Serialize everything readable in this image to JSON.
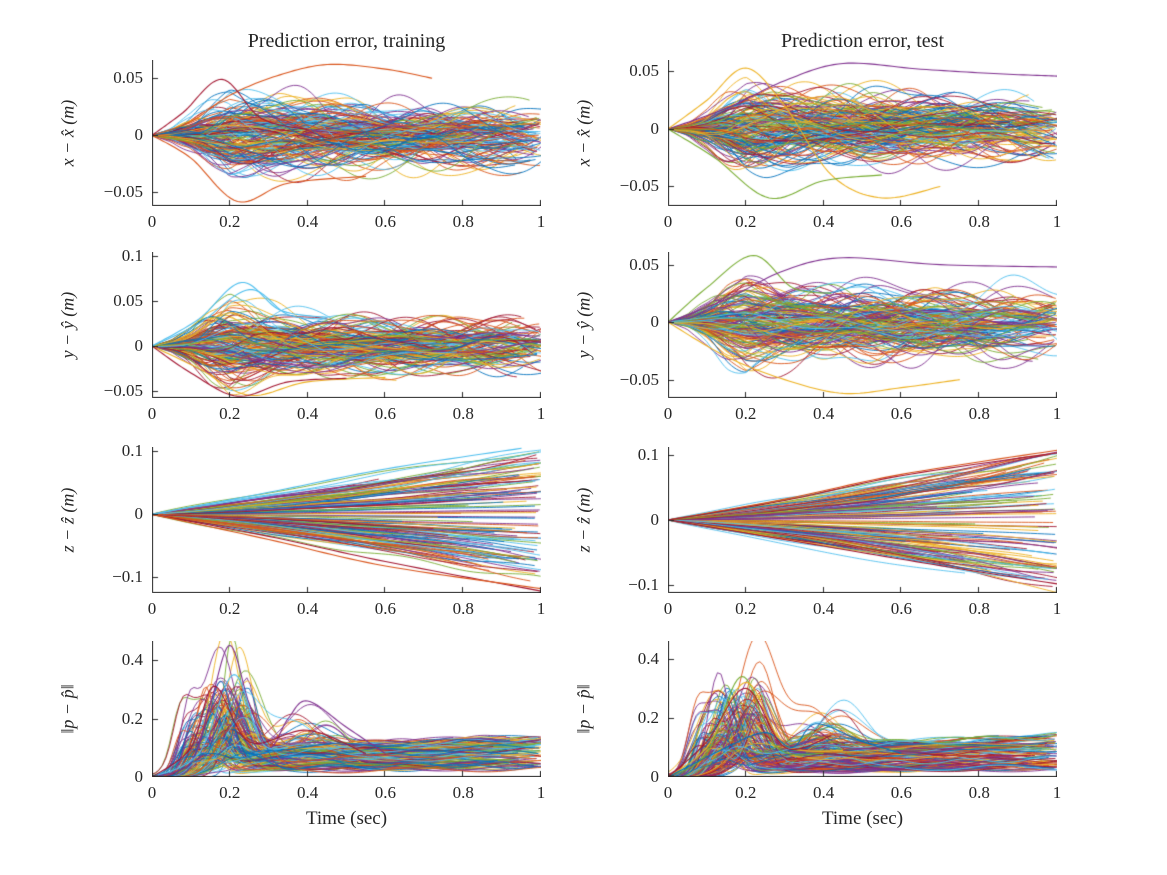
{
  "figure": {
    "background": "#ffffff",
    "axis_color": "#262626",
    "text_color": "#262626",
    "layout_note": "4x2 grid of MATLAB-style subplots, left column = training, right column = test"
  },
  "palette": [
    "#0072BD",
    "#D95319",
    "#EDB120",
    "#7E2F8E",
    "#77AC30",
    "#4DBEEE",
    "#A2142F"
  ],
  "chart_data": [
    {
      "type": "line-ensemble",
      "kind": "sym",
      "seed": 7,
      "n_lines": 170,
      "title": "Prediction error, training",
      "xlabel": "",
      "ylabel": "x − x̂ (m)",
      "xlim": [
        0,
        1
      ],
      "ylim": [
        -0.062,
        0.066
      ],
      "xticks": [
        0,
        0.2,
        0.4,
        0.6,
        0.8,
        1
      ],
      "yticks": [
        0.05,
        0,
        -0.05
      ],
      "envelope_t": [
        0,
        0.05,
        0.1,
        0.15,
        0.2,
        0.25,
        0.3,
        0.35,
        0.4,
        0.5,
        0.6,
        0.7,
        0.8,
        0.9,
        1
      ],
      "envelope": [
        0,
        0.006,
        0.018,
        0.034,
        0.046,
        0.044,
        0.04,
        0.038,
        0.037,
        0.036,
        0.035,
        0.035,
        0.034,
        0.034,
        0.034
      ],
      "highlights": [
        {
          "color": "#D95319",
          "t": [
            0,
            0.1,
            0.2,
            0.32,
            0.45,
            0.6,
            0.72
          ],
          "v": [
            0,
            0.012,
            0.035,
            0.052,
            0.062,
            0.058,
            0.05
          ]
        },
        {
          "color": "#A2142F",
          "t": [
            0,
            0.08,
            0.18,
            0.28,
            0.4
          ],
          "v": [
            0,
            0.02,
            0.049,
            0.015,
            0.005
          ]
        },
        {
          "color": "#D95319",
          "t": [
            0,
            0.1,
            0.22,
            0.35,
            0.55
          ],
          "v": [
            0,
            -0.02,
            -0.058,
            -0.042,
            -0.036
          ]
        }
      ],
      "description": "~170 x-position prediction-error trajectories vs time; bulge of about +/-0.05 m near t=0.2 s settling to +/-0.035 m band"
    },
    {
      "type": "line-ensemble",
      "kind": "sym",
      "seed": 12,
      "n_lines": 170,
      "title": "Prediction error, test",
      "xlabel": "",
      "ylabel": "x − x̂ (m)",
      "xlim": [
        0,
        1
      ],
      "ylim": [
        -0.067,
        0.06
      ],
      "xticks": [
        0,
        0.2,
        0.4,
        0.6,
        0.8,
        1
      ],
      "yticks": [
        0.05,
        0,
        -0.05
      ],
      "envelope_t": [
        0,
        0.05,
        0.1,
        0.15,
        0.2,
        0.25,
        0.3,
        0.35,
        0.4,
        0.5,
        0.6,
        0.7,
        0.8,
        0.9,
        1
      ],
      "envelope": [
        0,
        0.005,
        0.016,
        0.032,
        0.043,
        0.042,
        0.039,
        0.037,
        0.036,
        0.035,
        0.035,
        0.034,
        0.034,
        0.034,
        0.034
      ],
      "highlights": [
        {
          "color": "#7E2F8E",
          "t": [
            0,
            0.15,
            0.3,
            0.45,
            0.65,
            0.85,
            1
          ],
          "v": [
            0,
            0.018,
            0.042,
            0.057,
            0.052,
            0.048,
            0.046
          ]
        },
        {
          "color": "#EDB120",
          "t": [
            0,
            0.1,
            0.2,
            0.3,
            0.42,
            0.55,
            0.7
          ],
          "v": [
            0,
            0.025,
            0.053,
            0.02,
            -0.04,
            -0.06,
            -0.05
          ]
        },
        {
          "color": "#77AC30",
          "t": [
            0,
            0.12,
            0.26,
            0.4,
            0.55
          ],
          "v": [
            0,
            -0.025,
            -0.06,
            -0.045,
            -0.04
          ]
        }
      ],
      "description": "~170 x-position prediction-error trajectories on test data; similar +/-0.05 m bulge near t=0.2 s"
    },
    {
      "type": "line-ensemble",
      "kind": "sym",
      "seed": 3,
      "n_lines": 170,
      "title": "",
      "xlabel": "",
      "ylabel": "y − ŷ (m)",
      "xlim": [
        0,
        1
      ],
      "ylim": [
        -0.058,
        0.105
      ],
      "xticks": [
        0,
        0.2,
        0.4,
        0.6,
        0.8,
        1
      ],
      "yticks": [
        0.1,
        0.05,
        0,
        -0.05
      ],
      "envelope_t": [
        0,
        0.05,
        0.1,
        0.15,
        0.2,
        0.25,
        0.3,
        0.35,
        0.4,
        0.5,
        0.6,
        0.7,
        0.8,
        0.9,
        1
      ],
      "envelope": [
        0,
        0.007,
        0.02,
        0.038,
        0.05,
        0.047,
        0.042,
        0.039,
        0.037,
        0.036,
        0.035,
        0.035,
        0.035,
        0.035,
        0.035
      ],
      "highlights": [
        {
          "color": "#4DBEEE",
          "t": [
            0,
            0.12,
            0.23,
            0.33,
            0.45
          ],
          "v": [
            0,
            0.03,
            0.071,
            0.04,
            0.032
          ]
        },
        {
          "color": "#4DBEEE",
          "t": [
            0,
            0.12,
            0.25,
            0.35,
            0.45
          ],
          "v": [
            0,
            0.025,
            0.063,
            0.035,
            0.03
          ]
        },
        {
          "color": "#EDB120",
          "t": [
            0,
            0.12,
            0.25,
            0.4,
            0.6
          ],
          "v": [
            0,
            -0.025,
            -0.055,
            -0.04,
            -0.035
          ]
        },
        {
          "color": "#A2142F",
          "t": [
            0,
            0.1,
            0.22,
            0.35,
            0.5
          ],
          "v": [
            0,
            -0.03,
            -0.056,
            -0.04,
            -0.036
          ]
        }
      ],
      "description": "~170 y-position prediction-error trajectories (training); peak ~0.07 m near t=0.22 s, settling band +/-0.04 m"
    },
    {
      "type": "line-ensemble",
      "kind": "sym",
      "seed": 9,
      "n_lines": 170,
      "title": "",
      "xlabel": "",
      "ylabel": "y − ŷ (m)",
      "xlim": [
        0,
        1
      ],
      "ylim": [
        -0.066,
        0.061
      ],
      "xticks": [
        0,
        0.2,
        0.4,
        0.6,
        0.8,
        1
      ],
      "yticks": [
        0.05,
        0,
        -0.05
      ],
      "envelope_t": [
        0,
        0.05,
        0.1,
        0.15,
        0.2,
        0.25,
        0.3,
        0.35,
        0.4,
        0.5,
        0.6,
        0.7,
        0.8,
        0.9,
        1
      ],
      "envelope": [
        0,
        0.006,
        0.018,
        0.035,
        0.046,
        0.044,
        0.04,
        0.038,
        0.037,
        0.036,
        0.035,
        0.035,
        0.035,
        0.035,
        0.035
      ],
      "highlights": [
        {
          "color": "#77AC30",
          "t": [
            0,
            0.1,
            0.22,
            0.32,
            0.42
          ],
          "v": [
            0,
            0.03,
            0.058,
            0.03,
            0.025
          ]
        },
        {
          "color": "#7E2F8E",
          "t": [
            0,
            0.15,
            0.3,
            0.45,
            0.7,
            1
          ],
          "v": [
            0,
            0.02,
            0.045,
            0.056,
            0.05,
            0.048
          ]
        },
        {
          "color": "#EDB120",
          "t": [
            0,
            0.15,
            0.3,
            0.45,
            0.6,
            0.75
          ],
          "v": [
            0,
            -0.03,
            -0.05,
            -0.062,
            -0.057,
            -0.05
          ]
        }
      ],
      "description": "~170 y-position prediction-error trajectories (test); peak ~0.058 m near t=0.2 s"
    },
    {
      "type": "line-ensemble",
      "kind": "fan",
      "seed": 5,
      "n_lines": 150,
      "fan_max": 0.105,
      "title": "",
      "xlabel": "",
      "ylabel": "z − ẑ (m)",
      "xlim": [
        0,
        1
      ],
      "ylim": [
        -0.125,
        0.107
      ],
      "xticks": [
        0,
        0.2,
        0.4,
        0.6,
        0.8,
        1
      ],
      "yticks": [
        0.1,
        0,
        -0.1
      ],
      "highlights": [
        {
          "color": "#4DBEEE",
          "t": [
            0,
            0.3,
            0.6,
            0.95
          ],
          "v": [
            0,
            0.035,
            0.072,
            0.105
          ]
        },
        {
          "color": "#A2142F",
          "t": [
            0,
            0.3,
            0.6,
            1
          ],
          "v": [
            0,
            -0.035,
            -0.075,
            -0.122
          ]
        },
        {
          "color": "#D95319",
          "t": [
            0,
            0.3,
            0.6,
            1
          ],
          "v": [
            0,
            -0.04,
            -0.082,
            -0.118
          ]
        }
      ],
      "description": "~150 z-position prediction-error trajectories (training); fan spreading monotonically from 0 to about +/-0.1 m at t=1 s"
    },
    {
      "type": "line-ensemble",
      "kind": "fan",
      "seed": 8,
      "n_lines": 150,
      "fan_max": 0.108,
      "title": "",
      "xlabel": "",
      "ylabel": "z − ẑ (m)",
      "xlim": [
        0,
        1
      ],
      "ylim": [
        -0.112,
        0.112
      ],
      "xticks": [
        0,
        0.2,
        0.4,
        0.6,
        0.8,
        1
      ],
      "yticks": [
        0.1,
        0,
        -0.1
      ],
      "highlights": [
        {
          "color": "#D95319",
          "t": [
            0,
            0.3,
            0.6,
            1
          ],
          "v": [
            0,
            0.032,
            0.07,
            0.107
          ]
        },
        {
          "color": "#A2142F",
          "t": [
            0,
            0.3,
            0.6,
            1
          ],
          "v": [
            0,
            0.03,
            0.068,
            0.103
          ]
        },
        {
          "color": "#A2142F",
          "t": [
            0,
            0.4,
            0.7,
            1
          ],
          "v": [
            0,
            -0.04,
            -0.07,
            -0.098
          ]
        }
      ],
      "description": "~150 z-position prediction-error trajectories (test); fan spreading from 0 to about +/-0.1 m at t=1 s"
    },
    {
      "type": "line-ensemble",
      "kind": "norm",
      "seed": 21,
      "n_lines": 170,
      "title": "",
      "xlabel": "Time (sec)",
      "ylabel": "‖p − p̂‖",
      "xlim": [
        0,
        1
      ],
      "ylim": [
        0,
        0.465
      ],
      "xticks": [
        0,
        0.2,
        0.4,
        0.6,
        0.8,
        1
      ],
      "yticks": [
        0.4,
        0.2,
        0
      ],
      "gen": {
        "peak_h": [
          0.04,
          0.3
        ],
        "peak_t": [
          0.12,
          0.25
        ],
        "tail": [
          0.02,
          0.11
        ],
        "second_bump_prob": 0.3
      },
      "highlights": [
        {
          "color": "#7E2F8E",
          "t": [
            0,
            0.1,
            0.15,
            0.2,
            0.25,
            0.3,
            0.35,
            0.4,
            0.5,
            0.6
          ],
          "v": [
            0,
            0.05,
            0.25,
            0.45,
            0.25,
            0.1,
            0.2,
            0.26,
            0.17,
            0.08
          ]
        },
        {
          "color": "#4DBEEE",
          "t": [
            0,
            0.12,
            0.21,
            0.28,
            0.35
          ],
          "v": [
            0,
            0.08,
            0.35,
            0.12,
            0.1
          ]
        },
        {
          "color": "#A2142F",
          "t": [
            0,
            0.1,
            0.16,
            0.25,
            0.4,
            0.55
          ],
          "v": [
            0,
            0.1,
            0.31,
            0.12,
            0.16,
            0.08
          ]
        }
      ],
      "description": "~170 position-error-norm trajectories (training); burst peaking up to 0.45 m near t=0.2 s, settling to 0.05-0.12 m band"
    },
    {
      "type": "line-ensemble",
      "kind": "norm",
      "seed": 33,
      "n_lines": 170,
      "title": "",
      "xlabel": "Time (sec)",
      "ylabel": "‖p − p̂‖",
      "xlim": [
        0,
        1
      ],
      "ylim": [
        0,
        0.46
      ],
      "xticks": [
        0,
        0.2,
        0.4,
        0.6,
        0.8,
        1
      ],
      "yticks": [
        0.4,
        0.2,
        0
      ],
      "gen": {
        "peak_h": [
          0.04,
          0.28
        ],
        "peak_t": [
          0.12,
          0.24
        ],
        "tail": [
          0.02,
          0.11
        ],
        "second_bump_prob": 0.3
      },
      "highlights": [
        {
          "color": "#77AC30",
          "t": [
            0,
            0.1,
            0.19,
            0.28,
            0.4
          ],
          "v": [
            0,
            0.08,
            0.34,
            0.1,
            0.08
          ]
        },
        {
          "color": "#EDB120",
          "t": [
            0,
            0.1,
            0.2,
            0.3,
            0.45
          ],
          "v": [
            0,
            0.1,
            0.32,
            0.11,
            0.09
          ]
        },
        {
          "color": "#0072BD",
          "t": [
            0,
            0.15,
            0.25,
            0.32,
            0.38,
            0.5,
            0.6
          ],
          "v": [
            0,
            0.1,
            0.15,
            0.1,
            0.18,
            0.12,
            0.08
          ]
        },
        {
          "color": "#A2142F",
          "t": [
            0,
            0.1,
            0.2,
            0.3,
            0.42
          ],
          "v": [
            0,
            0.12,
            0.3,
            0.1,
            0.14
          ]
        }
      ],
      "description": "~170 position-error-norm trajectories (test); burst peaking ~0.34 m near t=0.19 s, settling to 0.05-0.11 m band"
    }
  ]
}
